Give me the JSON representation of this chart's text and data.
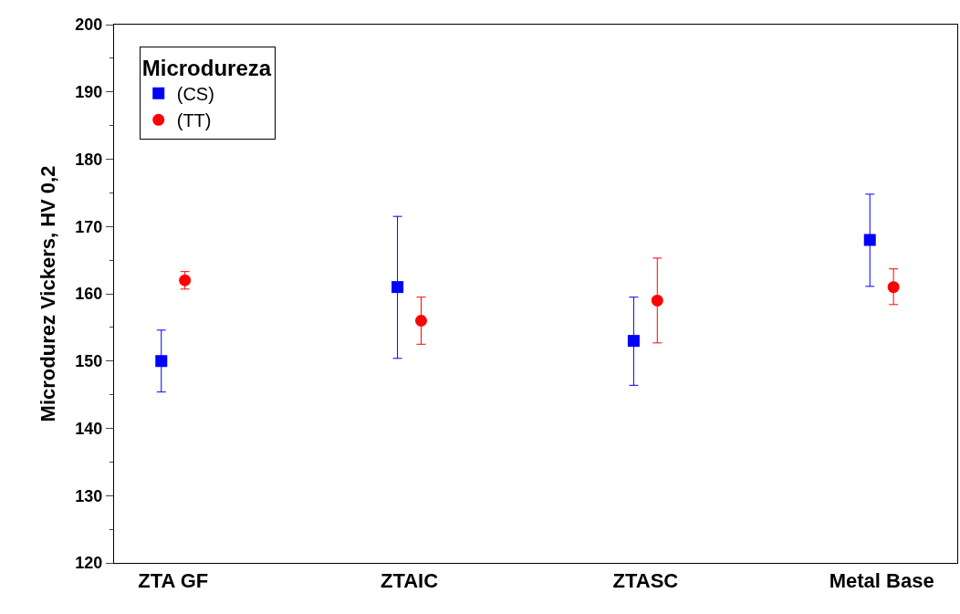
{
  "chart_data": {
    "type": "scatter",
    "categories": [
      "ZTA GF",
      "ZTAIC",
      "ZTASC",
      "Metal Base"
    ],
    "ylabel": "Microdurez Vickers, HV 0,2",
    "legend_title": "Microdureza",
    "legend": "top left",
    "ylim": [
      120,
      200
    ],
    "yticks": [
      120,
      130,
      140,
      150,
      160,
      170,
      180,
      190,
      200
    ],
    "series": [
      {
        "name": "(CS)",
        "color": "#0000ff",
        "marker": "square",
        "values": [
          150,
          161,
          153,
          168
        ],
        "errors": [
          [
            145.4,
            154.6
          ],
          [
            150.4,
            171.5
          ],
          [
            146.4,
            159.5
          ],
          [
            161.1,
            174.8
          ]
        ]
      },
      {
        "name": "(TT)",
        "color": "#ff0000",
        "marker": "circle",
        "values": [
          162,
          156,
          159,
          161
        ],
        "errors": [
          [
            160.7,
            163.3
          ],
          [
            152.5,
            159.5
          ],
          [
            152.7,
            165.3
          ],
          [
            158.4,
            163.7
          ]
        ]
      }
    ]
  }
}
